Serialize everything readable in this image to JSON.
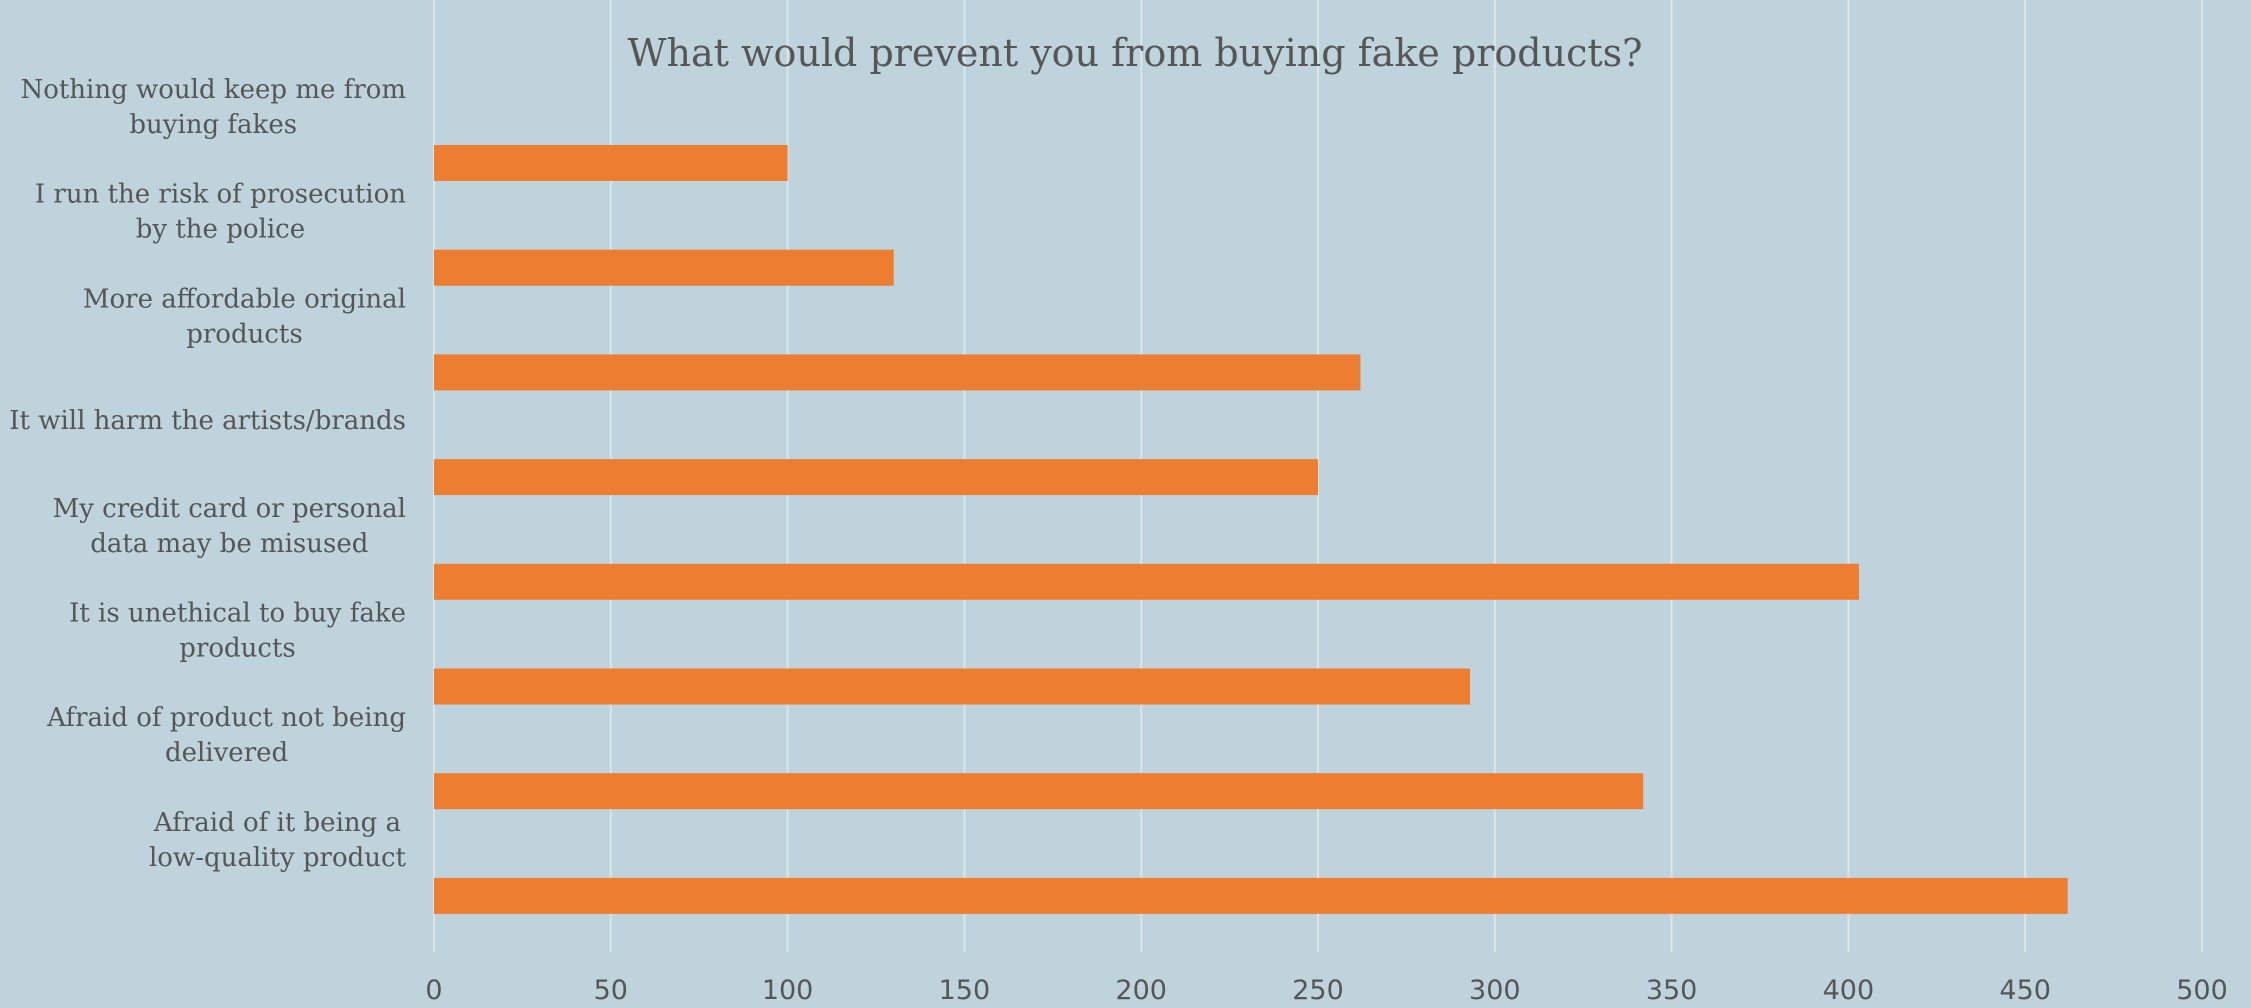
{
  "chart_data": {
    "type": "bar",
    "orientation": "horizontal",
    "title": "What would prevent you from buying fake products?",
    "xlabel": "",
    "ylabel": "",
    "categories": [
      "Nothing would keep me from buying fakes",
      "I run the risk of prosecution by the police",
      "More affordable original products",
      "It will harm the artists/brands",
      "My credit card or personal data may be misused",
      "It is unethical to buy fake products",
      "Afraid of product not being delivered",
      "Afraid of it being a low-quality product"
    ],
    "values": [
      100,
      130,
      262,
      250,
      403,
      293,
      342,
      462
    ],
    "xlim": [
      0,
      500
    ],
    "xticks": [
      "0",
      "50",
      "100",
      "150",
      "200",
      "250",
      "300",
      "350",
      "400",
      "450",
      "500"
    ],
    "grid": true,
    "legend": "none",
    "colors": {
      "background": "#bed3db",
      "bar": "#ed7d31",
      "grid": "#dde5e8",
      "text": "#565656"
    }
  }
}
